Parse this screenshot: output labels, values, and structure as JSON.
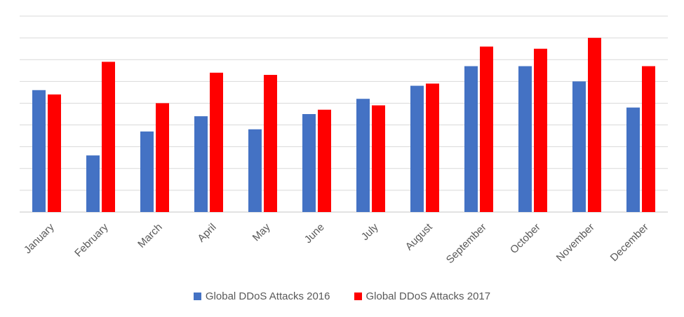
{
  "chart_data": {
    "type": "bar",
    "title": "",
    "xlabel": "",
    "ylabel": "",
    "grid": true,
    "legend_position": "bottom",
    "ylim": [
      0,
      9
    ],
    "categories": [
      "January",
      "February",
      "March",
      "April",
      "May",
      "June",
      "July",
      "August",
      "September",
      "October",
      "November",
      "December"
    ],
    "series": [
      {
        "name": "Global DDoS Attacks 2016",
        "color": "#4472C4",
        "values": [
          5.6,
          2.6,
          3.7,
          4.4,
          3.8,
          4.5,
          5.2,
          5.8,
          6.7,
          6.7,
          6.0,
          4.8
        ]
      },
      {
        "name": "Global DDoS Attacks 2017",
        "color": "#FF0000",
        "values": [
          5.4,
          6.9,
          5.0,
          6.4,
          6.3,
          4.7,
          4.9,
          5.9,
          7.6,
          7.5,
          8.0,
          6.7
        ]
      }
    ]
  }
}
